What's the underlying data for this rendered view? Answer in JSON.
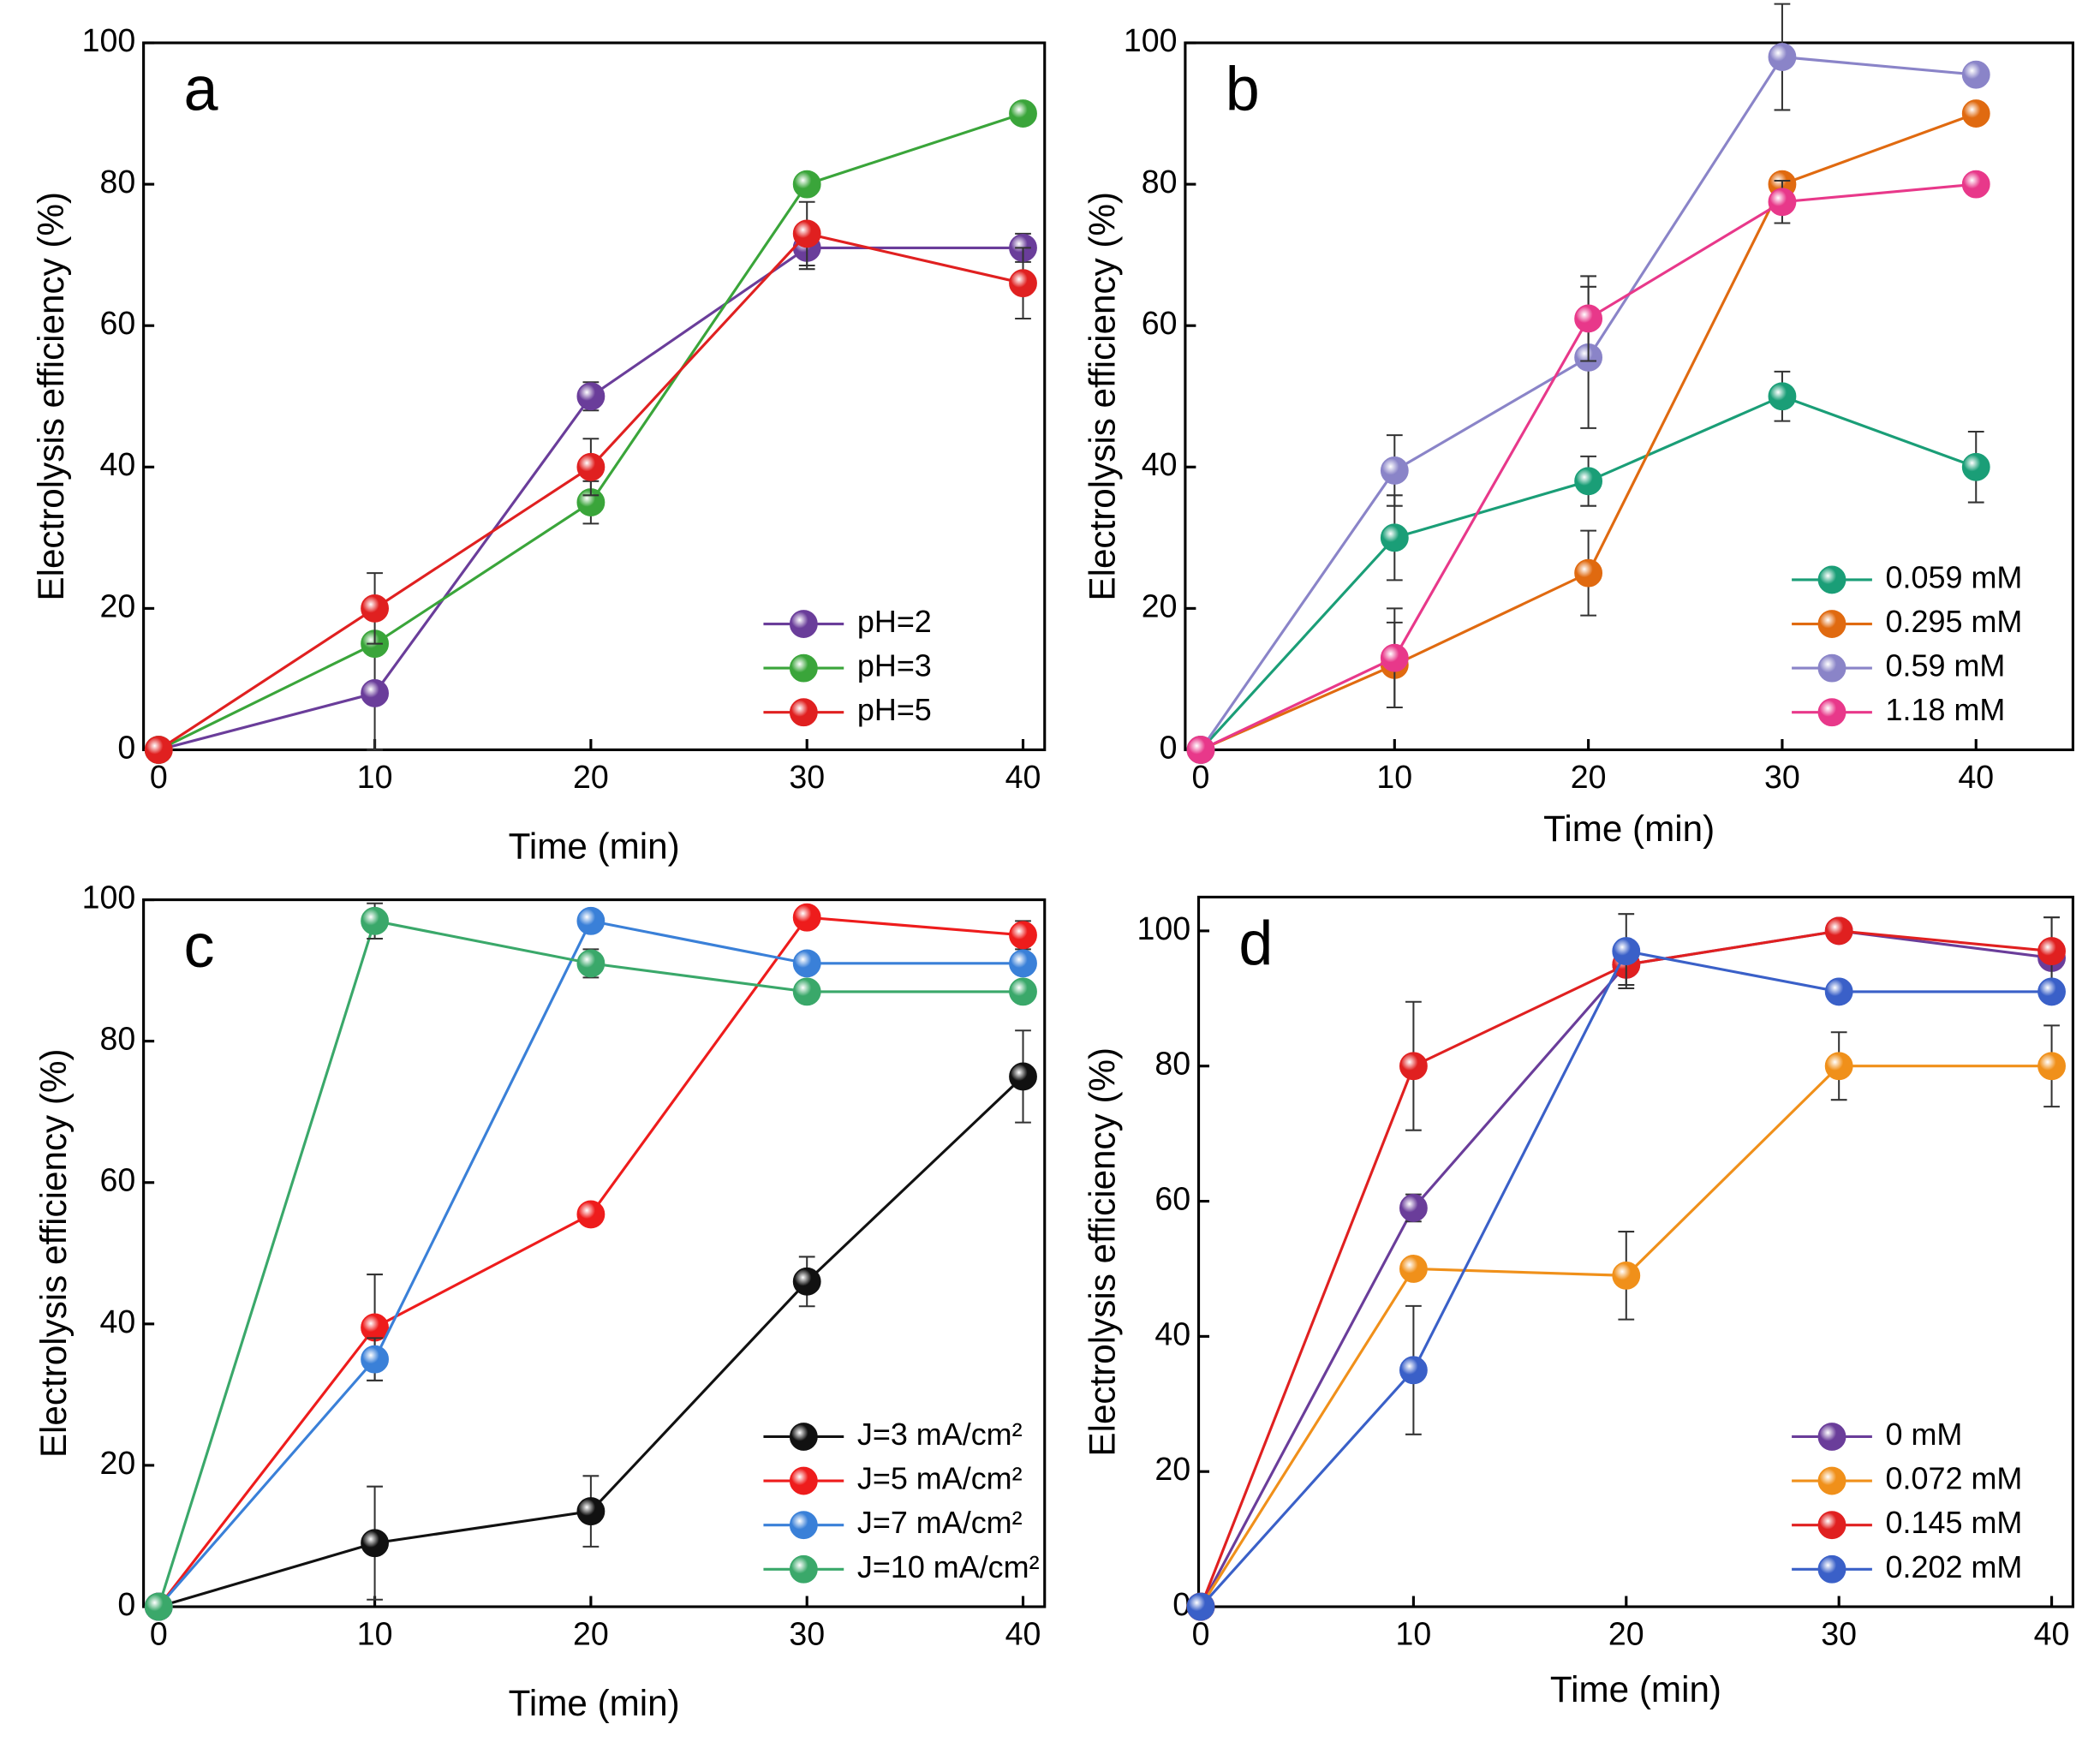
{
  "chart_data": [
    {
      "type": "line",
      "panel_label": "a",
      "x_label": "Time (min)",
      "y_label": "Electrolysis efficiency (%)",
      "x": [
        0,
        10,
        20,
        30,
        40
      ],
      "xlim": [
        -0.7,
        41
      ],
      "xticks": [
        0,
        10,
        20,
        30,
        40
      ],
      "ylim": [
        0,
        100
      ],
      "yticks": [
        0,
        20,
        40,
        60,
        80,
        100
      ],
      "legend": "lower right",
      "series": [
        {
          "name": "pH=2",
          "color": "#6a3d9a",
          "values": [
            0,
            8,
            50,
            71,
            71
          ],
          "errors": [
            0,
            8,
            2,
            3,
            2
          ]
        },
        {
          "name": "pH=3",
          "color": "#3aa53a",
          "values": [
            0,
            15,
            35,
            80,
            90
          ],
          "errors": [
            0,
            1,
            3,
            1,
            1
          ]
        },
        {
          "name": "pH=5",
          "color": "#e02020",
          "values": [
            0,
            20,
            40,
            73,
            66
          ],
          "errors": [
            0,
            5,
            4,
            4.5,
            5
          ]
        }
      ]
    },
    {
      "type": "line",
      "panel_label": "b",
      "x_label": "Time (min)",
      "y_label": "Electrolysis efficiency (%)",
      "x": [
        0,
        10,
        20,
        30,
        40
      ],
      "xlim": [
        -0.8,
        45
      ],
      "xticks": [
        0,
        10,
        20,
        30,
        40
      ],
      "ylim": [
        0,
        100
      ],
      "yticks": [
        0,
        20,
        40,
        60,
        80,
        100
      ],
      "legend": "lower right",
      "series": [
        {
          "name": "0.059 mM",
          "color": "#1a9e77",
          "values": [
            0,
            30,
            38,
            50,
            40
          ],
          "errors": [
            0,
            6,
            3.5,
            3.5,
            5
          ]
        },
        {
          "name": "0.295 mM",
          "color": "#e06a10",
          "values": [
            0,
            12,
            25,
            80,
            90
          ],
          "errors": [
            0,
            6,
            6,
            1,
            1
          ]
        },
        {
          "name": "0.59 mM",
          "color": "#8a84c8",
          "values": [
            0,
            39.5,
            55.5,
            98,
            95.5
          ],
          "errors": [
            0,
            5,
            10,
            7.5,
            1
          ]
        },
        {
          "name": "1.18 mM",
          "color": "#e8388a",
          "values": [
            0,
            13,
            61,
            77.5,
            80
          ],
          "errors": [
            0,
            7,
            6,
            3,
            1
          ]
        }
      ]
    },
    {
      "type": "line",
      "panel_label": "c",
      "x_label": "Time (min)",
      "y_label": "Electrolysis efficiency (%)",
      "x": [
        0,
        10,
        20,
        30,
        40
      ],
      "xlim": [
        -0.7,
        41
      ],
      "xticks": [
        0,
        10,
        20,
        30,
        40
      ],
      "ylim": [
        0,
        100
      ],
      "yticks": [
        0,
        20,
        40,
        60,
        80,
        100
      ],
      "legend": "lower right",
      "series": [
        {
          "name": "J=3 mA/cm²",
          "color": "#111111",
          "values": [
            0,
            9,
            13.5,
            46,
            75
          ],
          "errors": [
            0,
            8,
            5,
            3.5,
            6.5
          ]
        },
        {
          "name": "J=5 mA/cm²",
          "color": "#ee1c1c",
          "values": [
            0,
            39.5,
            55.5,
            97.5,
            95
          ],
          "errors": [
            0,
            7.5,
            0,
            0,
            2
          ]
        },
        {
          "name": "J=7 mA/cm²",
          "color": "#3a80d8",
          "values": [
            0,
            35,
            97,
            91,
            91
          ],
          "errors": [
            0,
            3,
            0,
            0,
            0
          ]
        },
        {
          "name": "J=10 mA/cm²",
          "color": "#3aa86a",
          "values": [
            0,
            97,
            91,
            87,
            87
          ],
          "errors": [
            0,
            2.5,
            2,
            1,
            1
          ]
        }
      ]
    },
    {
      "type": "line",
      "panel_label": "d",
      "x_label": "Time (min)",
      "y_label": "Electrolysis efficiency  (%)",
      "x": [
        0,
        10,
        20,
        30,
        40
      ],
      "xlim": [
        -0.1,
        41
      ],
      "xticks": [
        0,
        10,
        20,
        30,
        40
      ],
      "ylim": [
        0,
        105
      ],
      "yticks": [
        0,
        20,
        40,
        60,
        80,
        100
      ],
      "legend": "lower right",
      "series": [
        {
          "name": "0 mM",
          "color": "#6a3d9a",
          "values": [
            0,
            59,
            95,
            100,
            96
          ],
          "errors": [
            0,
            2,
            3,
            0.5,
            6
          ]
        },
        {
          "name": "0.072 mM",
          "color": "#f0901a",
          "values": [
            0,
            50,
            49,
            80,
            80
          ],
          "errors": [
            0,
            0,
            6.5,
            5,
            6
          ]
        },
        {
          "name": "0.145 mM",
          "color": "#e02020",
          "values": [
            0,
            80,
            95,
            100,
            97
          ],
          "errors": [
            0,
            9.5,
            3,
            0.5,
            5
          ]
        },
        {
          "name": "0.202 mM",
          "color": "#3a60c8",
          "values": [
            0,
            35,
            97,
            91,
            91
          ],
          "errors": [
            0,
            9.5,
            5.5,
            1,
            1
          ]
        }
      ]
    }
  ]
}
